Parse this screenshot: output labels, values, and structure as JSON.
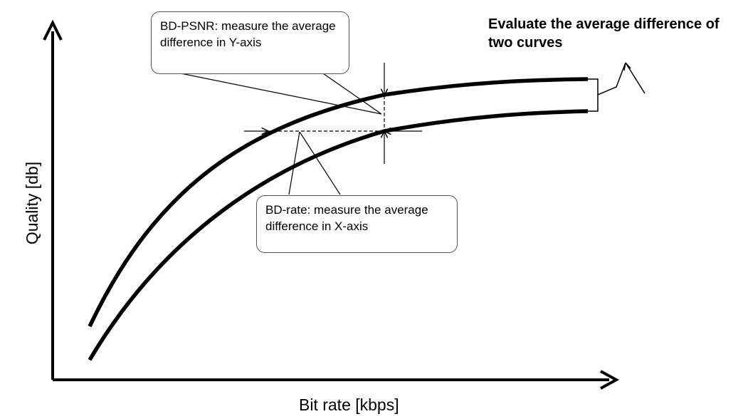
{
  "axes": {
    "x_label": "Bit rate [kbps]",
    "y_label": "Quality [db]"
  },
  "callouts": {
    "bd_psnr": "BD-PSNR: measure the average difference in Y-axis",
    "bd_rate": "BD-rate: measure the average difference in X-axis"
  },
  "note": "Evaluate the average difference of two curves",
  "colors": {
    "stroke": "#000000",
    "callout_border": "#555555"
  }
}
